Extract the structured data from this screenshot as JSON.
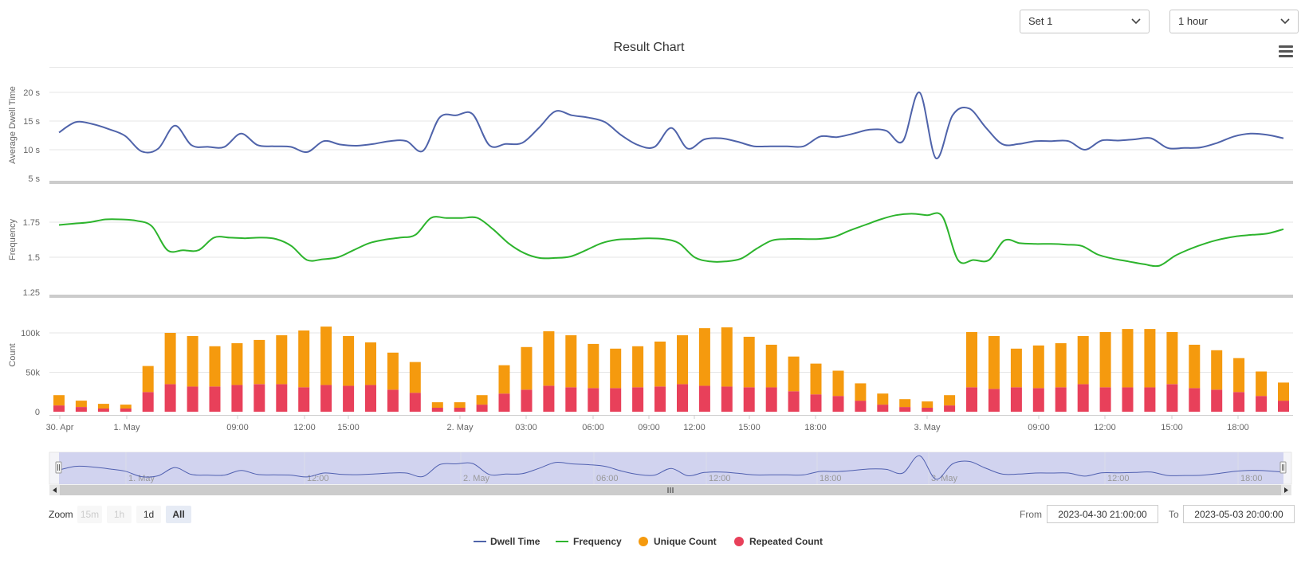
{
  "controls": {
    "set_select": {
      "selected": "Set 1"
    },
    "range_select": {
      "selected": "1 hour"
    }
  },
  "rangeSelector": {
    "zoom_label": "Zoom",
    "buttons": [
      {
        "label": "15m",
        "state": "disabled"
      },
      {
        "label": "1h",
        "state": "disabled"
      },
      {
        "label": "1d",
        "state": "normal"
      },
      {
        "label": "All",
        "state": "selected"
      }
    ],
    "from_label": "From",
    "from_value": "2023-04-30 21:00:00",
    "to_label": "To",
    "to_value": "2023-05-03 20:00:00"
  },
  "menu_icon": "hamburger-menu-icon",
  "colors": {
    "dwell": "#4f63aa",
    "frequency": "#2db42d",
    "unique": "#f59a0e",
    "repeated": "#e8405a",
    "navigator_mask": "#c5c8ec",
    "navigator_line": "#5060b0"
  },
  "chart_data": {
    "type": "line",
    "title": "Result Chart",
    "x_ticks": [
      "30. Apr",
      "1. May",
      "09:00",
      "12:00",
      "15:00",
      "2. May",
      "03:00",
      "06:00",
      "09:00",
      "12:00",
      "15:00",
      "18:00",
      "3. May",
      "09:00",
      "12:00",
      "15:00",
      "18:00"
    ],
    "navigator_ticks": [
      "1. May",
      "12:00",
      "2. May",
      "06:00",
      "12:00",
      "18:00",
      "3. May",
      "12:00",
      "18:00"
    ],
    "panels": [
      {
        "ylabel": "Average Dwell Time",
        "yticks": [
          "5 s",
          "10 s",
          "15 s",
          "20 s"
        ],
        "ylim": [
          3,
          23
        ],
        "series": [
          {
            "name": "Dwell Time",
            "type": "line",
            "key": "dwell",
            "values": [
              13,
              14.8,
              14.5,
              13.6,
              12.4,
              9.7,
              10.2,
              14.2,
              10.8,
              10.5,
              10.5,
              12.8,
              10.8,
              10.6,
              10.5,
              9.6,
              11.5,
              10.9,
              10.7,
              11.0,
              11.5,
              11.5,
              9.8,
              15.6,
              16.0,
              16.2,
              10.8,
              11.0,
              11.2,
              13.8,
              16.7,
              16.0,
              15.6,
              14.8,
              12.5,
              10.8,
              10.5,
              13.8,
              10.2,
              11.8,
              12.0,
              11.4,
              10.6,
              10.6,
              10.6,
              10.6,
              12.3,
              12.2,
              12.8,
              13.5,
              13.3,
              11.5,
              20.0,
              8.5,
              16.0,
              17.2,
              13.9,
              11.0,
              11.0,
              11.5,
              11.5,
              11.5,
              10.0,
              11.6,
              11.6,
              11.8,
              12.0,
              10.3,
              10.3,
              10.4,
              11.2,
              12.3,
              12.8,
              12.6,
              12.0
            ]
          }
        ]
      },
      {
        "ylabel": "Frequency",
        "yticks": [
          "1.25",
          "1.5",
          "1.75"
        ],
        "ylim": [
          1.25,
          1.95
        ],
        "series": [
          {
            "name": "Frequency",
            "type": "line",
            "key": "frequency",
            "values": [
              1.73,
              1.74,
              1.75,
              1.77,
              1.77,
              1.76,
              1.72,
              1.55,
              1.55,
              1.55,
              1.64,
              1.64,
              1.635,
              1.64,
              1.63,
              1.58,
              1.48,
              1.485,
              1.5,
              1.55,
              1.6,
              1.625,
              1.64,
              1.66,
              1.78,
              1.78,
              1.78,
              1.78,
              1.7,
              1.6,
              1.53,
              1.495,
              1.495,
              1.505,
              1.55,
              1.6,
              1.625,
              1.63,
              1.635,
              1.63,
              1.6,
              1.5,
              1.47,
              1.47,
              1.49,
              1.56,
              1.62,
              1.63,
              1.63,
              1.63,
              1.645,
              1.69,
              1.73,
              1.77,
              1.8,
              1.81,
              1.8,
              1.79,
              1.48,
              1.48,
              1.48,
              1.62,
              1.6,
              1.595,
              1.595,
              1.59,
              1.58,
              1.52,
              1.49,
              1.47,
              1.45,
              1.44,
              1.51,
              1.56,
              1.6,
              1.63,
              1.65,
              1.66,
              1.67,
              1.7
            ]
          }
        ]
      },
      {
        "ylabel": "Count",
        "yticks": [
          "0",
          "50k",
          "100k"
        ],
        "ylim": [
          0,
          120000
        ],
        "stacked": true,
        "series": [
          {
            "name": "Unique Count",
            "type": "column",
            "key": "unique",
            "values": [
              13000,
              8000,
              6000,
              5000,
              33000,
              65000,
              64000,
              51000,
              53000,
              56000,
              62000,
              72000,
              74000,
              63000,
              54000,
              47000,
              39000,
              7000,
              7000,
              12000,
              36000,
              54000,
              69000,
              66000,
              56000,
              50000,
              52000,
              57000,
              62000,
              73000,
              75000,
              64000,
              54000,
              44000,
              39000,
              32000,
              22000,
              14000,
              10000,
              8000,
              13000,
              70000,
              67000,
              49000,
              54000,
              56000,
              61000,
              70000,
              74000,
              74000,
              66000,
              55000,
              50000,
              43000,
              31000,
              23000
            ]
          },
          {
            "name": "Repeated Count",
            "type": "column",
            "key": "repeated",
            "values": [
              8000,
              6000,
              4000,
              4000,
              25000,
              35000,
              32000,
              32000,
              34000,
              35000,
              35000,
              31000,
              34000,
              33000,
              34000,
              28000,
              24000,
              5000,
              5000,
              9000,
              23000,
              28000,
              33000,
              31000,
              30000,
              30000,
              31000,
              32000,
              35000,
              33000,
              32000,
              31000,
              31000,
              26000,
              22000,
              20000,
              14000,
              9000,
              6000,
              5000,
              8000,
              31000,
              29000,
              31000,
              30000,
              31000,
              35000,
              31000,
              31000,
              31000,
              35000,
              30000,
              28000,
              25000,
              20000,
              14000
            ]
          }
        ]
      }
    ],
    "legend": [
      "Dwell Time",
      "Frequency",
      "Unique Count",
      "Repeated Count"
    ],
    "legend_position": "bottom-center",
    "grid": true
  }
}
